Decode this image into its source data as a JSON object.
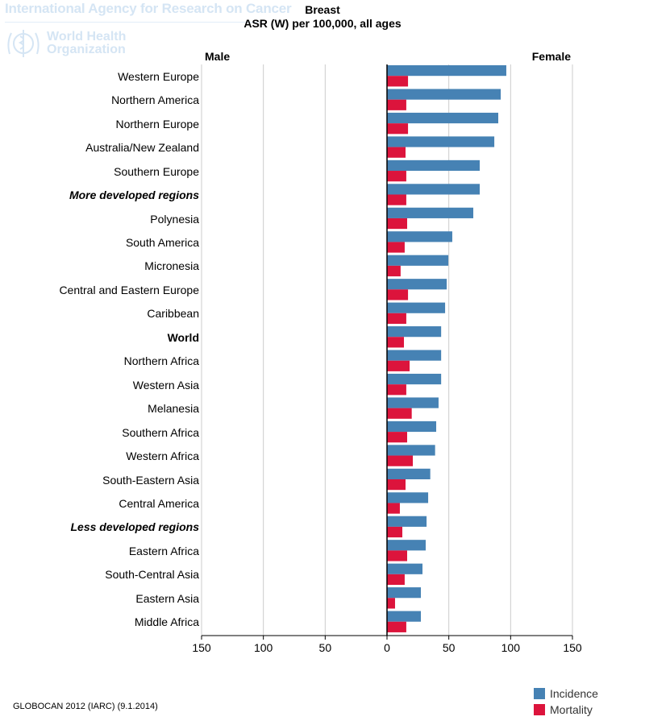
{
  "watermark": {
    "agency": "International Agency for Research on Cancer",
    "org_line1": "World Health",
    "org_line2": "Organization",
    "logo_icon": "who-emblem-icon"
  },
  "chart_data": {
    "type": "bar",
    "orientation": "horizontal",
    "title": "Breast",
    "subtitle": "ASR (W) per 100,000, all ages",
    "left_panel_label": "Male",
    "right_panel_label": "Female",
    "xlim": [
      -150,
      150
    ],
    "x_ticks": [
      -150,
      -100,
      -50,
      0,
      50,
      100,
      150
    ],
    "x_tick_labels": [
      "150",
      "100",
      "50",
      "0",
      "50",
      "100",
      "150"
    ],
    "grid": true,
    "legend_position": "bottom-right",
    "categories": [
      "Western Europe",
      "Northern America",
      "Northern Europe",
      "Australia/New Zealand",
      "Southern Europe",
      "More developed regions",
      "Polynesia",
      "South America",
      "Micronesia",
      "Central and Eastern Europe",
      "Caribbean",
      "World",
      "Northern Africa",
      "Western Asia",
      "Melanesia",
      "Southern Africa",
      "Western Africa",
      "South-Eastern Asia",
      "Central America",
      "Less developed regions",
      "Eastern Africa",
      "South-Central Asia",
      "Eastern Asia",
      "Middle Africa"
    ],
    "category_styles": [
      "normal",
      "normal",
      "normal",
      "normal",
      "normal",
      "bolditalic",
      "normal",
      "normal",
      "normal",
      "normal",
      "normal",
      "bold",
      "normal",
      "normal",
      "normal",
      "normal",
      "normal",
      "normal",
      "normal",
      "bolditalic",
      "normal",
      "normal",
      "normal",
      "normal"
    ],
    "series": [
      {
        "name": "Incidence",
        "side": "Female",
        "color": "#4682b4",
        "values": [
          96.5,
          92.0,
          90.0,
          86.8,
          75.0,
          75.0,
          69.8,
          52.8,
          49.6,
          48.3,
          47.0,
          43.8,
          43.8,
          43.8,
          41.7,
          39.8,
          38.9,
          35.0,
          33.3,
          32.0,
          31.3,
          28.7,
          27.4,
          27.4
        ]
      },
      {
        "name": "Mortality",
        "side": "Female",
        "color": "#dc143c",
        "values": [
          17.0,
          15.6,
          17.0,
          15.0,
          15.6,
          15.6,
          16.3,
          14.3,
          11.0,
          17.0,
          15.6,
          13.7,
          18.3,
          15.6,
          20.0,
          16.3,
          20.9,
          15.0,
          10.4,
          12.4,
          16.3,
          14.3,
          6.5,
          15.6
        ]
      }
    ]
  },
  "footer": {
    "source": "GLOBOCAN 2012 (IARC) (9.1.2014)"
  }
}
